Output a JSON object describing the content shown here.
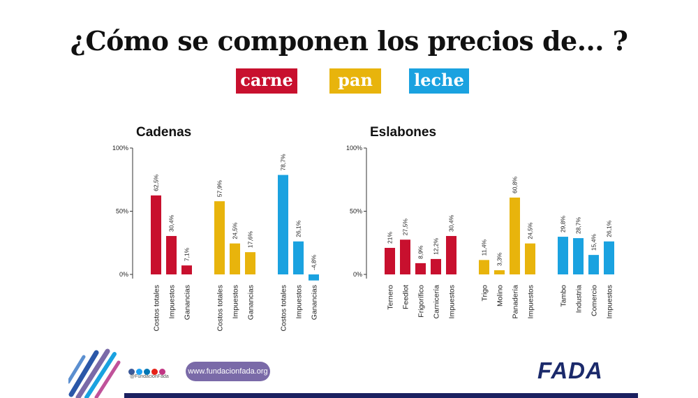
{
  "title": "¿Cómo se componen los precios de... ?",
  "tags": [
    {
      "label": "carne",
      "color": "#c8102e"
    },
    {
      "label": "pan",
      "color": "#e8b40c"
    },
    {
      "label": "leche",
      "color": "#1aa2e0"
    }
  ],
  "chart_data": [
    {
      "type": "bar",
      "title": "Cadenas",
      "ylim": [
        0,
        100
      ],
      "yticks": [
        "100%",
        "50%",
        "0%"
      ],
      "groups": [
        {
          "color": "#c8102e",
          "categories": [
            "Costos totales",
            "Impuestos",
            "Ganancias"
          ],
          "values": [
            62.5,
            30.4,
            7.1
          ],
          "labels": [
            "62,5%",
            "30,4%",
            "7,1%"
          ]
        },
        {
          "color": "#e8b40c",
          "categories": [
            "Costos totales",
            "Impuestos",
            "Ganancias"
          ],
          "values": [
            57.9,
            24.5,
            17.6
          ],
          "labels": [
            "57,9%",
            "24,5%",
            "17,6%"
          ]
        },
        {
          "color": "#1aa2e0",
          "categories": [
            "Costos totales",
            "Impuestos",
            "Ganancias"
          ],
          "values": [
            78.7,
            26.1,
            -4.8
          ],
          "labels": [
            "78,7%",
            "26,1%",
            "-4,8%"
          ]
        }
      ]
    },
    {
      "type": "bar",
      "title": "Eslabones",
      "ylim": [
        0,
        100
      ],
      "yticks": [
        "100%",
        "50%",
        "0%"
      ],
      "groups": [
        {
          "color": "#c8102e",
          "categories": [
            "Ternero",
            "Feedlot",
            "Frigorífico",
            "Carnicería",
            "Impuestos"
          ],
          "values": [
            21,
            27.5,
            8.9,
            12.2,
            30.4
          ],
          "labels": [
            "21%",
            "27,5%",
            "8,9%",
            "12,2%",
            "30,4%"
          ]
        },
        {
          "color": "#e8b40c",
          "categories": [
            "Trigo",
            "Molino",
            "Panadería",
            "Impuestos"
          ],
          "values": [
            11.4,
            3.3,
            60.8,
            24.5
          ],
          "labels": [
            "11,4%",
            "3,3%",
            "60,8%",
            "24,5%"
          ]
        },
        {
          "color": "#1aa2e0",
          "categories": [
            "Tambo",
            "Industria",
            "Comercio",
            "Impuestos"
          ],
          "values": [
            29.8,
            28.7,
            15.4,
            26.1
          ],
          "labels": [
            "29,8%",
            "28,7%",
            "15,4%",
            "26,1%"
          ]
        }
      ]
    }
  ],
  "footer": {
    "handle": "@FundacionFada",
    "url": "www.fundacionfada.org",
    "logo": "FADA",
    "social_icons": [
      "facebook-icon",
      "twitter-icon",
      "linkedin-icon",
      "youtube-icon",
      "instagram-icon"
    ],
    "brand_color": "#1b2a6b"
  }
}
